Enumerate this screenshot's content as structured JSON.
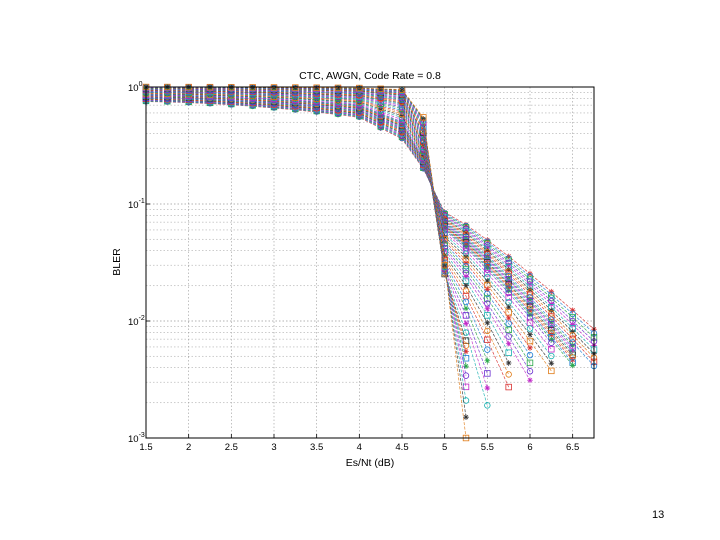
{
  "page": {
    "number": "13"
  },
  "colors": [
    "#d93030",
    "#1f7fd6",
    "#2aa84a",
    "#6a2fd0",
    "#c028c8",
    "#18b0b0",
    "#333333",
    "#e07b17"
  ],
  "markers": [
    "star",
    "circle",
    "square",
    "circle",
    "star",
    "square"
  ],
  "chart_data": {
    "type": "line",
    "title": "CTC, AWGN, Code Rate = 0.8",
    "xlabel": "Es/Nt (dB)",
    "ylabel": "BLER",
    "xlim": [
      1.5,
      6.75
    ],
    "ylim": [
      0.001,
      1
    ],
    "yscale": "log",
    "grid": true,
    "xticks": [
      "1.5",
      "2",
      "2.5",
      "3",
      "3.5",
      "4",
      "4.5",
      "5",
      "5.5",
      "6",
      "6.5"
    ],
    "yticks": [
      {
        "base": "10",
        "exp": "0"
      },
      {
        "base": "10",
        "exp": "-1"
      },
      {
        "base": "10",
        "exp": "-2"
      },
      {
        "base": "10",
        "exp": "-3"
      }
    ],
    "x": [
      1.5,
      1.75,
      2.0,
      2.25,
      2.5,
      2.75,
      3.0,
      3.25,
      3.5,
      3.75,
      4.0,
      4.25,
      4.5,
      4.75,
      5.0,
      5.25,
      5.5,
      5.75,
      6.0,
      6.25,
      6.5,
      6.75
    ],
    "series_count": 48,
    "series_families": [
      {
        "start": 0.75,
        "x4": 0.55,
        "x45": 0.36,
        "x475": 0.2,
        "x5": 0.085,
        "end_x": 6.75,
        "end_y": 0.0085
      },
      {
        "start": 0.8,
        "x4": 0.62,
        "x45": 0.43,
        "x475": 0.22,
        "x5": 0.07,
        "end_x": 6.75,
        "end_y": 0.004
      },
      {
        "start": 0.85,
        "x4": 0.7,
        "x45": 0.5,
        "x475": 0.24,
        "x5": 0.06,
        "end_x": 6.5,
        "end_y": 0.004
      },
      {
        "start": 0.92,
        "x4": 0.82,
        "x45": 0.7,
        "x475": 0.3,
        "x5": 0.04,
        "end_x": 6.0,
        "end_y": 0.003
      },
      {
        "start": 0.97,
        "x4": 0.92,
        "x45": 0.85,
        "x475": 0.4,
        "x5": 0.025,
        "end_x": 5.5,
        "end_y": 0.0015
      },
      {
        "start": 1.0,
        "x4": 0.98,
        "x45": 0.95,
        "x475": 0.55,
        "x5": 0.03,
        "end_x": 5.25,
        "end_y": 0.001
      }
    ]
  }
}
